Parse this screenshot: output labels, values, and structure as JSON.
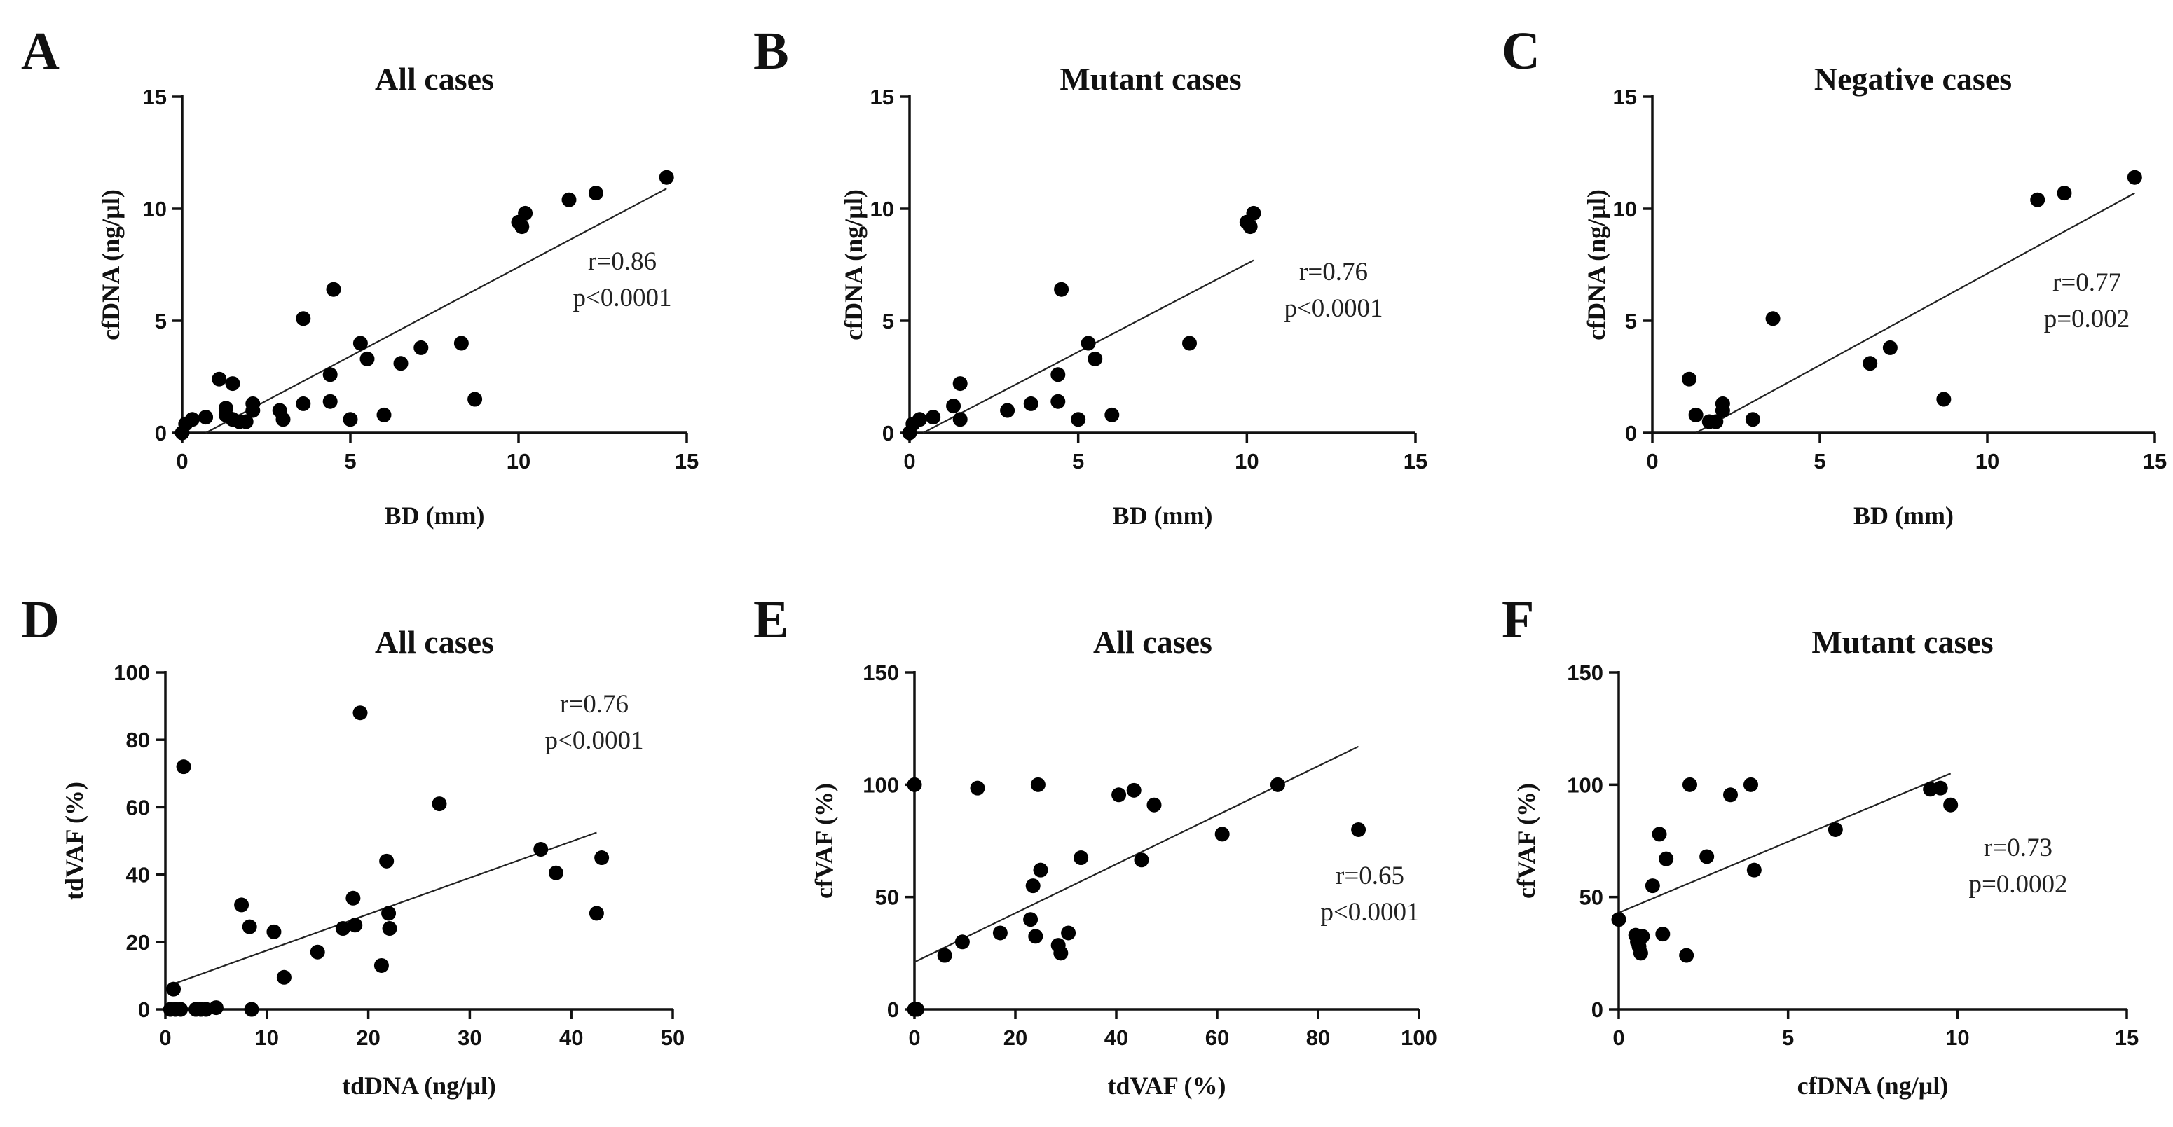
{
  "chart_data": [
    {
      "id": "A",
      "type": "scatter",
      "title": "All cases",
      "xlabel": "BD (mm)",
      "ylabel": "cfDNA (ng/µl)",
      "xlim": [
        0,
        15
      ],
      "ylim": [
        0,
        15
      ],
      "xticks": [
        0,
        5,
        10,
        15
      ],
      "yticks": [
        0,
        5,
        10,
        15
      ],
      "annotation": [
        "r=0.86",
        "p<0.0001"
      ],
      "fit": [
        [
          0.7,
          0
        ],
        [
          14.4,
          10.9
        ]
      ],
      "points": [
        [
          0,
          0
        ],
        [
          0.1,
          0.4
        ],
        [
          0.3,
          0.6
        ],
        [
          0.7,
          0.7
        ],
        [
          1.1,
          2.4
        ],
        [
          1.3,
          1.1
        ],
        [
          1.3,
          0.8
        ],
        [
          1.5,
          2.2
        ],
        [
          1.5,
          0.6
        ],
        [
          1.7,
          0.5
        ],
        [
          1.9,
          0.5
        ],
        [
          2.1,
          1.3
        ],
        [
          2.1,
          1.0
        ],
        [
          2.9,
          1.0
        ],
        [
          3.0,
          0.6
        ],
        [
          3.6,
          5.1
        ],
        [
          3.6,
          1.3
        ],
        [
          4.4,
          2.6
        ],
        [
          4.4,
          1.4
        ],
        [
          4.5,
          6.4
        ],
        [
          5.0,
          0.6
        ],
        [
          5.3,
          4.0
        ],
        [
          5.5,
          3.3
        ],
        [
          6.0,
          0.8
        ],
        [
          6.5,
          3.1
        ],
        [
          7.1,
          3.8
        ],
        [
          8.3,
          4.0
        ],
        [
          8.7,
          1.5
        ],
        [
          10.0,
          9.4
        ],
        [
          10.1,
          9.2
        ],
        [
          10.2,
          9.8
        ],
        [
          11.5,
          10.4
        ],
        [
          12.3,
          10.7
        ],
        [
          14.4,
          11.4
        ]
      ]
    },
    {
      "id": "B",
      "type": "scatter",
      "title": "Mutant cases",
      "xlabel": "BD (mm)",
      "ylabel": "cfDNA (ng/µl)",
      "xlim": [
        0,
        15
      ],
      "ylim": [
        0,
        15
      ],
      "xticks": [
        0,
        5,
        10,
        15
      ],
      "yticks": [
        0,
        5,
        10,
        15
      ],
      "annotation": [
        "r=0.76",
        "p<0.0001"
      ],
      "fit": [
        [
          0.4,
          0
        ],
        [
          10.2,
          7.7
        ]
      ],
      "points": [
        [
          0,
          0
        ],
        [
          0.1,
          0.4
        ],
        [
          0.3,
          0.6
        ],
        [
          0.7,
          0.7
        ],
        [
          1.3,
          1.2
        ],
        [
          1.5,
          2.2
        ],
        [
          1.5,
          0.6
        ],
        [
          2.9,
          1.0
        ],
        [
          3.6,
          1.3
        ],
        [
          4.4,
          2.6
        ],
        [
          4.4,
          1.4
        ],
        [
          4.5,
          6.4
        ],
        [
          5.0,
          0.6
        ],
        [
          5.3,
          4.0
        ],
        [
          5.5,
          3.3
        ],
        [
          6.0,
          0.8
        ],
        [
          8.3,
          4.0
        ],
        [
          10.0,
          9.4
        ],
        [
          10.1,
          9.2
        ],
        [
          10.2,
          9.8
        ]
      ]
    },
    {
      "id": "C",
      "type": "scatter",
      "title": "Negative cases",
      "xlabel": "BD (mm)",
      "ylabel": "cfDNA (ng/µl)",
      "xlim": [
        0,
        15
      ],
      "ylim": [
        0,
        15
      ],
      "xticks": [
        0,
        5,
        10,
        15
      ],
      "yticks": [
        0,
        5,
        10,
        15
      ],
      "annotation": [
        "r=0.77",
        "p=0.002"
      ],
      "fit": [
        [
          1.3,
          0
        ],
        [
          14.4,
          10.7
        ]
      ],
      "points": [
        [
          1.1,
          2.4
        ],
        [
          1.3,
          0.8
        ],
        [
          1.7,
          0.5
        ],
        [
          1.9,
          0.5
        ],
        [
          2.1,
          1.3
        ],
        [
          2.1,
          1.0
        ],
        [
          3.0,
          0.6
        ],
        [
          3.6,
          5.1
        ],
        [
          6.5,
          3.1
        ],
        [
          7.1,
          3.8
        ],
        [
          8.7,
          1.5
        ],
        [
          11.5,
          10.4
        ],
        [
          12.3,
          10.7
        ],
        [
          14.4,
          11.4
        ]
      ]
    },
    {
      "id": "D",
      "type": "scatter",
      "title": "All cases",
      "xlabel": "tdDNA (ng/µl)",
      "ylabel": "tdVAF (%)",
      "xlim": [
        0,
        50
      ],
      "ylim": [
        0,
        100
      ],
      "xticks": [
        0,
        10,
        20,
        30,
        40,
        50
      ],
      "yticks": [
        0,
        20,
        40,
        60,
        80,
        100
      ],
      "annotation": [
        "r=0.76",
        "p<0.0001"
      ],
      "fit": [
        [
          0.3,
          7
        ],
        [
          42.5,
          52.5
        ]
      ],
      "points": [
        [
          0.5,
          0
        ],
        [
          0.8,
          6
        ],
        [
          1.0,
          0
        ],
        [
          1.5,
          0
        ],
        [
          1.8,
          72
        ],
        [
          3.0,
          0
        ],
        [
          3.5,
          0
        ],
        [
          4.0,
          0
        ],
        [
          5.0,
          0.5
        ],
        [
          7.5,
          31
        ],
        [
          8.3,
          24.5
        ],
        [
          8.5,
          0
        ],
        [
          10.7,
          23
        ],
        [
          11.7,
          9.5
        ],
        [
          15.0,
          17
        ],
        [
          17.5,
          24
        ],
        [
          18.5,
          33
        ],
        [
          18.7,
          25
        ],
        [
          19.2,
          88
        ],
        [
          21.3,
          13
        ],
        [
          21.8,
          44
        ],
        [
          22.0,
          28.5
        ],
        [
          22.1,
          24
        ],
        [
          27.0,
          61
        ],
        [
          37.0,
          47.5
        ],
        [
          38.5,
          40.5
        ],
        [
          42.5,
          28.5
        ],
        [
          43.0,
          45
        ]
      ]
    },
    {
      "id": "E",
      "type": "scatter",
      "title": "All cases",
      "xlabel": "tdVAF (%)",
      "ylabel": "cfVAF (%)",
      "xlim": [
        0,
        100
      ],
      "ylim": [
        0,
        150
      ],
      "xticks": [
        0,
        20,
        40,
        60,
        80,
        100
      ],
      "yticks": [
        0,
        50,
        100,
        150
      ],
      "annotation": [
        "r=0.65",
        "p<0.0001"
      ],
      "fit": [
        [
          0,
          21
        ],
        [
          88,
          117
        ]
      ],
      "points": [
        [
          0,
          100
        ],
        [
          0,
          0
        ],
        [
          0.5,
          0
        ],
        [
          6,
          24
        ],
        [
          9.5,
          30
        ],
        [
          12.5,
          98.5
        ],
        [
          17,
          34
        ],
        [
          23,
          40
        ],
        [
          23.5,
          55
        ],
        [
          24,
          32.5
        ],
        [
          24.5,
          100
        ],
        [
          25,
          62
        ],
        [
          28.5,
          28.5
        ],
        [
          29,
          25
        ],
        [
          30.5,
          34
        ],
        [
          33,
          67.5
        ],
        [
          40.5,
          95.5
        ],
        [
          43.5,
          97.5
        ],
        [
          45,
          66.5
        ],
        [
          47.5,
          91
        ],
        [
          61,
          78
        ],
        [
          72,
          100
        ],
        [
          88,
          80
        ]
      ]
    },
    {
      "id": "F",
      "type": "scatter",
      "title": "Mutant cases",
      "xlabel": "cfDNA (ng/µl)",
      "ylabel": "cfVAF (%)",
      "xlim": [
        0,
        15
      ],
      "ylim": [
        0,
        150
      ],
      "xticks": [
        0,
        5,
        10,
        15
      ],
      "yticks": [
        0,
        50,
        100,
        150
      ],
      "annotation": [
        "r=0.73",
        "p=0.0002"
      ],
      "fit": [
        [
          0,
          43
        ],
        [
          9.8,
          105
        ]
      ],
      "points": [
        [
          0,
          40
        ],
        [
          0.5,
          33
        ],
        [
          0.55,
          30
        ],
        [
          0.6,
          28
        ],
        [
          0.65,
          25
        ],
        [
          0.7,
          32.5
        ],
        [
          1.0,
          55
        ],
        [
          1.2,
          78
        ],
        [
          1.3,
          33.5
        ],
        [
          1.4,
          67
        ],
        [
          2.0,
          24
        ],
        [
          2.1,
          100
        ],
        [
          2.6,
          68
        ],
        [
          3.3,
          95.5
        ],
        [
          3.9,
          100
        ],
        [
          4.0,
          62
        ],
        [
          6.4,
          80
        ],
        [
          9.2,
          98
        ],
        [
          9.5,
          98.5
        ],
        [
          9.8,
          91
        ]
      ]
    }
  ]
}
